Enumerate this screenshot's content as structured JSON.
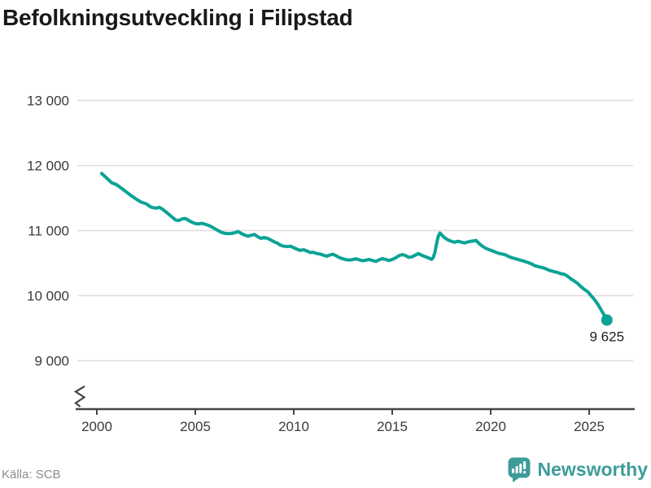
{
  "header": {
    "title": "Befolkningsutveckling i Filipstad"
  },
  "footer": {
    "source": "Källa: SCB",
    "brand": "Newsworthy"
  },
  "colors": {
    "line": "#0ba396",
    "marker": "#0ba396",
    "logo": "#3e9c98",
    "grid": "#dddddd",
    "axis": "#454545",
    "tick_text": "#3a3a3a",
    "title_text": "#191919",
    "source_text": "#8e8e8e",
    "value_label_text": "#202020"
  },
  "chart_data": {
    "type": "line",
    "title": "Befolkningsutveckling i Filipstad",
    "xlabel": "",
    "ylabel": "",
    "grid": "horizontal",
    "legend_position": "none",
    "axis_break_at_bottom": true,
    "xlim": [
      2000,
      2026
    ],
    "ylim": [
      9000,
      13000
    ],
    "xticks": {
      "values": [
        2000,
        2005,
        2010,
        2015,
        2020,
        2025
      ],
      "labels": [
        "2000",
        "2005",
        "2010",
        "2015",
        "2020",
        "2025"
      ]
    },
    "yticks": {
      "values": [
        13000,
        12000,
        11000,
        10000,
        9000
      ],
      "labels": [
        "13 000",
        "12 000",
        "11 000",
        "10 000",
        "9 000"
      ]
    },
    "last_point_label": "9 625",
    "last_point": {
      "x": 2025.9,
      "y": 9625
    },
    "series": [
      {
        "x": [
          2000.25,
          2000.5,
          2000.75,
          2001.0,
          2001.25,
          2001.5,
          2001.75,
          2002.0,
          2002.25,
          2002.5,
          2002.75,
          2003.0,
          2003.17,
          2003.33,
          2003.5,
          2003.67,
          2003.83,
          2004.0,
          2004.17,
          2004.33,
          2004.5,
          2004.67,
          2004.83,
          2005.0,
          2005.17,
          2005.33,
          2005.5,
          2005.67,
          2005.83,
          2006.0,
          2006.17,
          2006.33,
          2006.5,
          2006.67,
          2006.83,
          2007.0,
          2007.17,
          2007.33,
          2007.5,
          2007.67,
          2007.83,
          2008.0,
          2008.17,
          2008.33,
          2008.5,
          2008.67,
          2008.83,
          2009.0,
          2009.17,
          2009.33,
          2009.5,
          2009.67,
          2009.83,
          2010.0,
          2010.17,
          2010.33,
          2010.5,
          2010.67,
          2010.83,
          2011.0,
          2011.17,
          2011.33,
          2011.5,
          2011.67,
          2011.83,
          2012.0,
          2012.17,
          2012.33,
          2012.5,
          2012.67,
          2012.83,
          2013.0,
          2013.17,
          2013.33,
          2013.5,
          2013.67,
          2013.83,
          2014.0,
          2014.17,
          2014.33,
          2014.5,
          2014.67,
          2014.83,
          2015.0,
          2015.17,
          2015.33,
          2015.5,
          2015.67,
          2015.83,
          2016.0,
          2016.17,
          2016.33,
          2016.5,
          2016.67,
          2016.83,
          2017.0,
          2017.08,
          2017.17,
          2017.25,
          2017.33,
          2017.42,
          2017.5,
          2017.58,
          2017.67,
          2017.83,
          2018.0,
          2018.17,
          2018.33,
          2018.5,
          2018.67,
          2018.83,
          2019.0,
          2019.17,
          2019.25,
          2019.42,
          2019.58,
          2019.75,
          2019.92,
          2020.08,
          2020.25,
          2020.42,
          2020.58,
          2020.75,
          2020.92,
          2021.08,
          2021.25,
          2021.42,
          2021.58,
          2021.75,
          2021.92,
          2022.08,
          2022.25,
          2022.42,
          2022.58,
          2022.75,
          2022.92,
          2023.08,
          2023.25,
          2023.42,
          2023.58,
          2023.75,
          2023.92,
          2024.08,
          2024.25,
          2024.42,
          2024.58,
          2024.75,
          2024.92,
          2025.08,
          2025.25,
          2025.42,
          2025.58,
          2025.75,
          2025.9
        ],
        "y": [
          11878,
          11806,
          11736,
          11705,
          11650,
          11592,
          11536,
          11484,
          11438,
          11412,
          11360,
          11345,
          11357,
          11330,
          11290,
          11248,
          11205,
          11163,
          11155,
          11180,
          11186,
          11155,
          11128,
          11108,
          11102,
          11112,
          11098,
          11080,
          11058,
          11028,
          10998,
          10972,
          10958,
          10952,
          10956,
          10966,
          10986,
          10956,
          10932,
          10914,
          10928,
          10940,
          10906,
          10880,
          10894,
          10880,
          10856,
          10828,
          10806,
          10774,
          10760,
          10754,
          10760,
          10736,
          10712,
          10696,
          10706,
          10686,
          10662,
          10666,
          10646,
          10640,
          10622,
          10606,
          10624,
          10636,
          10610,
          10582,
          10566,
          10552,
          10546,
          10556,
          10566,
          10550,
          10536,
          10546,
          10556,
          10540,
          10526,
          10550,
          10570,
          10556,
          10540,
          10556,
          10580,
          10612,
          10630,
          10618,
          10590,
          10596,
          10622,
          10646,
          10620,
          10600,
          10582,
          10558,
          10582,
          10668,
          10800,
          10905,
          10962,
          10940,
          10912,
          10888,
          10856,
          10836,
          10820,
          10836,
          10822,
          10810,
          10824,
          10836,
          10842,
          10850,
          10798,
          10760,
          10728,
          10706,
          10690,
          10668,
          10650,
          10640,
          10628,
          10600,
          10582,
          10568,
          10552,
          10540,
          10524,
          10506,
          10488,
          10460,
          10446,
          10434,
          10420,
          10396,
          10380,
          10366,
          10354,
          10336,
          10328,
          10294,
          10258,
          10224,
          10186,
          10140,
          10098,
          10062,
          10008,
          9948,
          9878,
          9798,
          9708,
          9625
        ]
      }
    ]
  }
}
